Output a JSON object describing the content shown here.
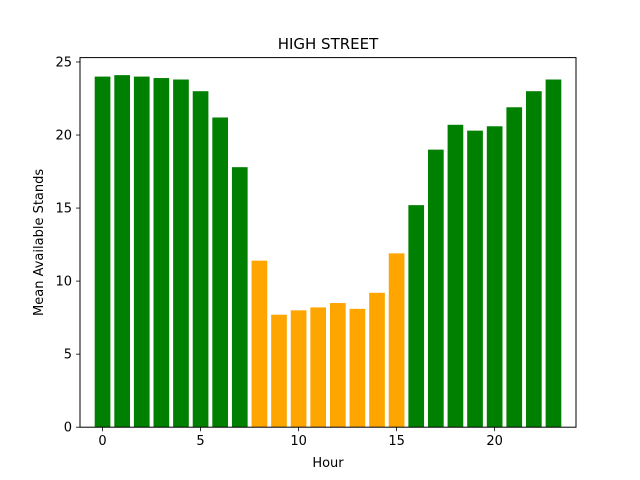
{
  "chart_data": {
    "type": "bar",
    "title": "HIGH STREET",
    "xlabel": "Hour",
    "ylabel": "Mean Available Stands",
    "x": [
      0,
      1,
      2,
      3,
      4,
      5,
      6,
      7,
      8,
      9,
      10,
      11,
      12,
      13,
      14,
      15,
      16,
      17,
      18,
      19,
      20,
      21,
      22,
      23
    ],
    "values": [
      24.0,
      24.1,
      24.0,
      23.9,
      23.8,
      23.0,
      21.2,
      17.8,
      11.4,
      7.7,
      8.0,
      8.2,
      8.5,
      8.1,
      9.2,
      11.9,
      15.2,
      19.0,
      20.7,
      20.3,
      20.6,
      21.9,
      23.0,
      23.8
    ],
    "bar_colors": [
      "#008000",
      "#008000",
      "#008000",
      "#008000",
      "#008000",
      "#008000",
      "#008000",
      "#008000",
      "#FFA500",
      "#FFA500",
      "#FFA500",
      "#FFA500",
      "#FFA500",
      "#FFA500",
      "#FFA500",
      "#FFA500",
      "#008000",
      "#008000",
      "#008000",
      "#008000",
      "#008000",
      "#008000",
      "#008000",
      "#008000"
    ],
    "xlim": [
      -1.15,
      24.15
    ],
    "ylim": [
      0,
      25.3
    ],
    "xticks": [
      0,
      5,
      10,
      15,
      20
    ],
    "xtick_labels": [
      "0",
      "5",
      "10",
      "15",
      "20"
    ],
    "yticks": [
      0,
      5,
      10,
      15,
      20,
      25
    ],
    "ytick_labels": [
      "0",
      "5",
      "10",
      "15",
      "20",
      "25"
    ],
    "grid": false
  }
}
